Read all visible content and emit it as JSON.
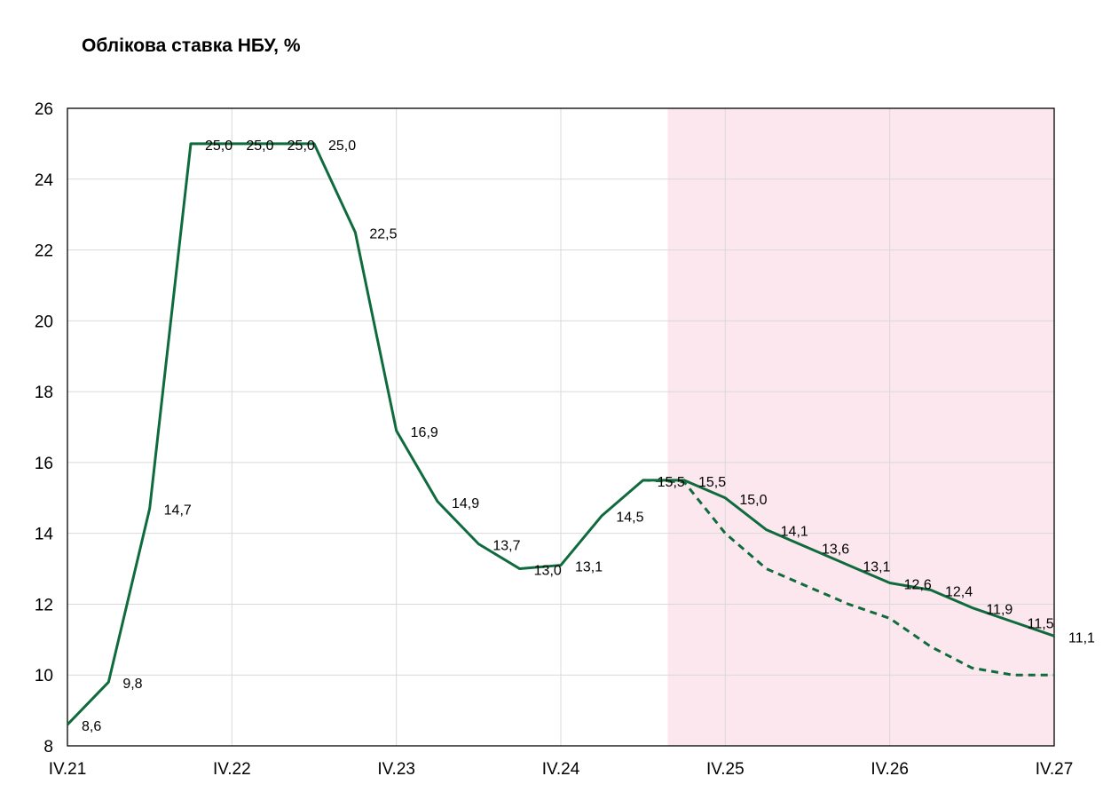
{
  "chart_data": {
    "type": "line",
    "title": "Облікова ставка НБУ, %",
    "xlabel": "",
    "ylabel": "",
    "ylim": [
      8,
      26
    ],
    "yticks": [
      8,
      10,
      12,
      14,
      16,
      18,
      20,
      22,
      24,
      26
    ],
    "x_ticks": [
      "IV.21",
      "IV.22",
      "IV.23",
      "IV.24",
      "IV.25",
      "IV.26",
      "IV.27"
    ],
    "grid": true,
    "x_periods": [
      "IV.21",
      "I.22",
      "II.22",
      "III.22",
      "IV.22",
      "I.23",
      "II.23",
      "III.23",
      "IV.23",
      "I.24",
      "II.24",
      "III.24",
      "IV.24",
      "I.25",
      "II.25",
      "III.25",
      "IV.25",
      "I.26",
      "II.26",
      "III.26",
      "IV.26",
      "I.27",
      "II.27",
      "III.27",
      "IV.27"
    ],
    "forecast_region_start_quarter": 14.6,
    "series": [
      {
        "style": "solid",
        "color": "#0f6b3e",
        "values": [
          8.6,
          9.8,
          14.7,
          25.0,
          25.0,
          25.0,
          25.0,
          22.5,
          16.9,
          14.9,
          13.7,
          13.0,
          13.1,
          14.5,
          15.5,
          15.5,
          15.0,
          14.1,
          13.6,
          13.1,
          12.6,
          12.4,
          11.9,
          11.5,
          11.1
        ],
        "labels": [
          "8,6",
          "9,8",
          "14,7",
          "25,0",
          "25,0",
          "25,0",
          "25,0",
          "22,5",
          "16,9",
          "14,9",
          "13,7",
          "13,0",
          "13,1",
          "14,5",
          "15,5",
          "15,5",
          "15,0",
          "14,1",
          "13,6",
          "13,1",
          "12,6",
          "12,4",
          "11,9",
          "11,5",
          "11,1"
        ]
      },
      {
        "style": "dashed",
        "color": "#0f6b3e",
        "start_index": 14,
        "values": [
          15.5,
          15.45,
          14.0,
          13.0,
          12.5,
          12.0,
          11.6,
          10.8,
          10.2,
          10.0,
          10.0
        ]
      }
    ],
    "colors": {
      "line": "#0f6b3e",
      "forecast_shade": "#fde7ee",
      "grid": "#d9d9d9",
      "frame": "#000000"
    }
  }
}
